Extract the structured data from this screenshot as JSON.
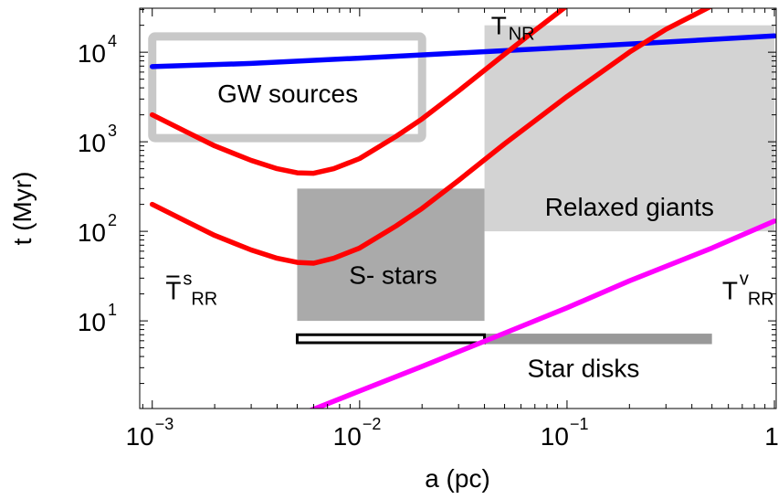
{
  "chart_data": {
    "type": "line",
    "x_scale": "log",
    "y_scale": "log",
    "xlabel": "a (pc)",
    "ylabel": "t (Myr)",
    "xlim": [
      0.00087,
      1.02
    ],
    "ylim": [
      1.05,
      31000
    ],
    "grid": false,
    "x_ticks": [
      {
        "value": 0.001,
        "base": "10",
        "exp": "−3"
      },
      {
        "value": 0.01,
        "base": "10",
        "exp": "−2"
      },
      {
        "value": 0.1,
        "base": "10",
        "exp": "−1"
      },
      {
        "value": 1,
        "base": "1",
        "exp": ""
      }
    ],
    "y_ticks": [
      {
        "value": 10,
        "base": "10",
        "exp": "1"
      },
      {
        "value": 100,
        "base": "10",
        "exp": "2"
      },
      {
        "value": 1000,
        "base": "10",
        "exp": "3"
      },
      {
        "value": 10000,
        "base": "10",
        "exp": "4"
      }
    ],
    "regions": [
      {
        "name": "GW sources",
        "label": "GW sources",
        "x0": 0.001,
        "x1": 0.02,
        "y0": 1100,
        "y1": 15000,
        "style": "outline",
        "color": "#c8c8c8",
        "label_x": 0.0045,
        "label_y": 3500
      },
      {
        "name": "Relaxed giants",
        "label": "Relaxed giants",
        "x0": 0.04,
        "x1": 1.0,
        "y0": 100,
        "y1": 20000,
        "style": "fill",
        "color": "#d3d3d3",
        "label_x": 0.2,
        "label_y": 190
      },
      {
        "name": "S- stars",
        "label": "S- stars",
        "x0": 0.005,
        "x1": 0.04,
        "y0": 10,
        "y1": 300,
        "style": "fill",
        "color": "#aaaaaa",
        "label_x": 0.0145,
        "label_y": 33
      },
      {
        "name": "Star disks bar",
        "label": "",
        "x0": 0.04,
        "x1": 0.5,
        "y0": 5.5,
        "y1": 7.2,
        "style": "fill",
        "color": "#999999"
      },
      {
        "name": "Star disks box",
        "label": "",
        "x0": 0.005,
        "x1": 0.04,
        "y0": 5.7,
        "y1": 7.0,
        "style": "outline",
        "color": "#000000"
      },
      {
        "name": "Star disks",
        "label": "Star disks",
        "x0": 0.04,
        "x1": 0.5,
        "y0": 5.5,
        "y1": 7.2,
        "style": "label-only",
        "color": "",
        "label_x": 0.12,
        "label_y": 3.0
      }
    ],
    "series": [
      {
        "name": "T_NR",
        "color": "#0000ff",
        "x": [
          0.001,
          0.003,
          0.01,
          0.03,
          0.1,
          0.3,
          1.0
        ],
        "y": [
          6900,
          7500,
          8600,
          9800,
          11300,
          13000,
          15200
        ]
      },
      {
        "name": "T^s_RR upper",
        "color": "#ff0000",
        "x": [
          0.001,
          0.0015,
          0.002,
          0.003,
          0.004,
          0.005,
          0.006,
          0.0075,
          0.01,
          0.015,
          0.02,
          0.03,
          0.05,
          0.07,
          0.1
        ],
        "y": [
          2000,
          1250,
          900,
          620,
          500,
          450,
          445,
          500,
          650,
          1150,
          1800,
          3700,
          9500,
          17500,
          33000
        ]
      },
      {
        "name": "T^s_RR lower",
        "color": "#ff0000",
        "x": [
          0.001,
          0.0015,
          0.002,
          0.003,
          0.004,
          0.005,
          0.006,
          0.0075,
          0.01,
          0.015,
          0.02,
          0.03,
          0.05,
          0.1,
          0.2,
          0.3,
          0.5,
          0.7
        ],
        "y": [
          200,
          125,
          90,
          62,
          50,
          45,
          44,
          50,
          65,
          115,
          180,
          370,
          950,
          3200,
          10000,
          18000,
          33000,
          33000
        ]
      },
      {
        "name": "T^v_RR",
        "color": "#ff00ff",
        "x": [
          0.0058,
          0.01,
          0.02,
          0.05,
          0.1,
          0.2,
          0.5,
          1.0
        ],
        "y": [
          1.0,
          1.65,
          3.1,
          7.3,
          14,
          28,
          65,
          130
        ]
      }
    ],
    "curve_labels": [
      {
        "base": "T",
        "sup": "",
        "sub": "NR",
        "bar": false,
        "x": 0.043,
        "y": 20000
      },
      {
        "base": "T",
        "sup": "s",
        "sub": "RR",
        "bar": true,
        "x": 0.00116,
        "y": 22
      },
      {
        "base": "T",
        "sup": "v",
        "sub": "RR",
        "bar": false,
        "x": 0.56,
        "y": 22
      }
    ]
  }
}
